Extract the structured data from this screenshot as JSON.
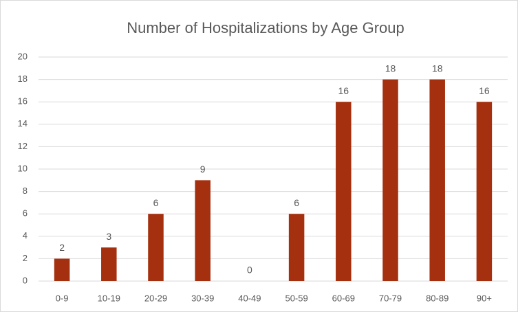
{
  "chart_data": {
    "type": "bar",
    "title": "Number of Hospitalizations by Age Group",
    "categories": [
      "0-9",
      "10-19",
      "20-29",
      "30-39",
      "40-49",
      "50-59",
      "60-69",
      "70-79",
      "80-89",
      "90+"
    ],
    "values": [
      2,
      3,
      6,
      9,
      0,
      6,
      16,
      18,
      18,
      16
    ],
    "color": "#a5300f",
    "ylim": [
      0,
      20
    ],
    "yticks": [
      0,
      2,
      4,
      6,
      8,
      10,
      12,
      14,
      16,
      18,
      20
    ],
    "grid": true
  }
}
